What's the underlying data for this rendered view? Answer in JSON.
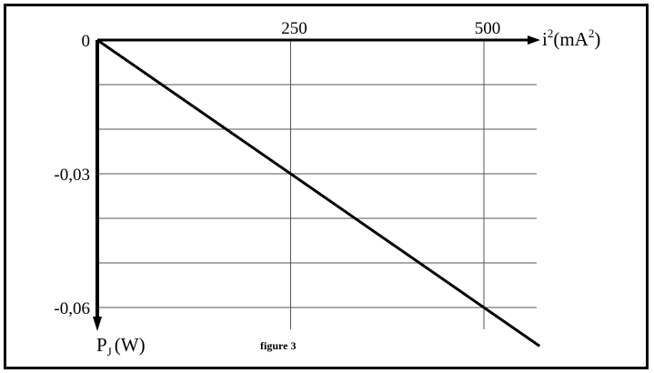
{
  "chart_data": {
    "type": "line",
    "title": "",
    "caption": "figure 3",
    "xlabel": {
      "main": "i",
      "sup": "2",
      "unit_pre": "(mA",
      "unit_sup": "2",
      "unit_post": ")"
    },
    "ylabel": {
      "main": "P",
      "sub": "J",
      "unit": "(W)"
    },
    "xlim": [
      0,
      500
    ],
    "ylim": [
      -0.06,
      0
    ],
    "x_ticks": [
      {
        "value": 250,
        "label": "250"
      },
      {
        "value": 500,
        "label": "500"
      }
    ],
    "y_ticks": [
      {
        "value": 0,
        "label": "0"
      },
      {
        "value": -0.03,
        "label": "-0,03"
      },
      {
        "value": -0.06,
        "label": "-0,06"
      }
    ],
    "grid": true,
    "series": [
      {
        "x": [
          0,
          500
        ],
        "y": [
          0,
          -0.06
        ]
      }
    ]
  }
}
